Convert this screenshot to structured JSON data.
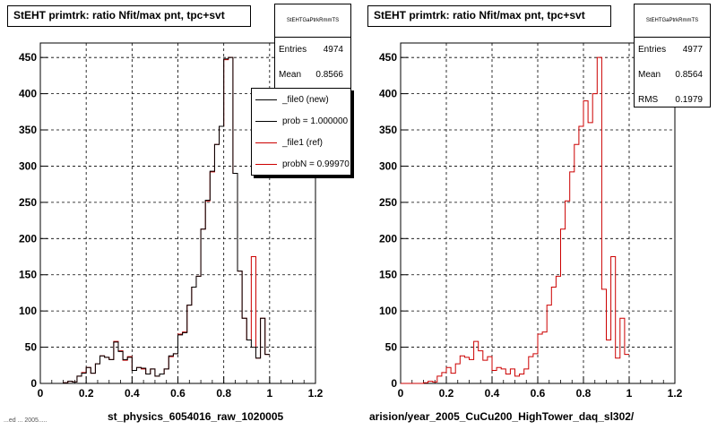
{
  "left": {
    "title": "StEHT primtrk: ratio Nfit/max pnt, tpc+svt",
    "stats": {
      "name": "StEHTGaPtrkRmmTS",
      "entries_label": "Entries",
      "entries": "4974",
      "mean_label": "Mean",
      "mean": "0.8566"
    },
    "legend": [
      {
        "label": "_file0 (new)",
        "color": "#000000"
      },
      {
        "label": "prob = 1.000000",
        "color": "#000000"
      },
      {
        "label": "_file1 (ref)",
        "color": "#cc0000"
      },
      {
        "label": "probN = 0.99970",
        "color": "#cc0000"
      }
    ],
    "footer": "st_physics_6054016_raw_1020005"
  },
  "right": {
    "title": "StEHT primtrk: ratio Nfit/max pnt, tpc+svt",
    "stats": {
      "name": "StEHTGaPtrkRmmTS",
      "entries_label": "Entries",
      "entries": "4977",
      "mean_label": "Mean",
      "mean": "0.8564",
      "rms_label": "RMS",
      "rms": "0.1979"
    },
    "footer": "arision/year_2005_CuCu200_HighTower_daq_sl302/"
  },
  "bottom_note": "...ed ... 2005.....",
  "chart_data": [
    {
      "type": "line",
      "title": "StEHT primtrk: ratio Nfit/max pnt, tpc+svt",
      "xlim": [
        0,
        1.2
      ],
      "ylim": [
        0,
        470
      ],
      "x_ticks": [
        "0",
        "0.2",
        "0.4",
        "0.6",
        "0.8",
        "1",
        "1.2"
      ],
      "y_ticks": [
        "0",
        "50",
        "100",
        "150",
        "200",
        "250",
        "300",
        "350",
        "400",
        "450"
      ],
      "grid": true,
      "bin_width": 0.02,
      "series": [
        {
          "name": "_file0 (new)",
          "color": "#000000",
          "values": [
            0,
            0,
            0,
            0,
            0,
            1,
            3,
            2,
            10,
            14,
            22,
            14,
            27,
            38,
            36,
            33,
            57,
            44,
            33,
            36,
            18,
            22,
            21,
            13,
            20,
            10,
            13,
            20,
            38,
            41,
            67,
            70,
            108,
            133,
            148,
            213,
            253,
            293,
            330,
            355,
            448,
            450,
            290,
            155,
            90,
            60,
            50,
            35,
            90,
            40
          ]
        },
        {
          "name": "_file1 (ref)",
          "color": "#cc0000",
          "values": [
            0,
            0,
            0,
            0,
            0,
            1,
            3,
            2,
            10,
            15,
            22,
            14,
            27,
            38,
            36,
            33,
            58,
            45,
            32,
            37,
            18,
            22,
            20,
            13,
            20,
            10,
            13,
            20,
            37,
            41,
            68,
            71,
            108,
            133,
            148,
            213,
            252,
            292,
            330,
            355,
            447,
            450,
            290,
            155,
            90,
            60,
            175,
            35,
            90,
            40
          ]
        }
      ]
    },
    {
      "type": "line",
      "title": "StEHT primtrk: ratio Nfit/max pnt, tpc+svt",
      "xlim": [
        0,
        1.2
      ],
      "ylim": [
        0,
        470
      ],
      "x_ticks": [
        "0",
        "0.2",
        "0.4",
        "0.6",
        "0.8",
        "1",
        "1.2"
      ],
      "y_ticks": [
        "0",
        "50",
        "100",
        "150",
        "200",
        "250",
        "300",
        "350",
        "400",
        "450"
      ],
      "grid": true,
      "bin_width": 0.02,
      "series": [
        {
          "name": "_file1 (ref)",
          "color": "#cc0000",
          "values": [
            0,
            0,
            0,
            0,
            0,
            1,
            3,
            2,
            10,
            15,
            22,
            14,
            27,
            38,
            36,
            33,
            58,
            45,
            32,
            37,
            18,
            22,
            20,
            13,
            20,
            10,
            13,
            20,
            37,
            41,
            68,
            71,
            108,
            133,
            148,
            213,
            252,
            292,
            330,
            355,
            390,
            360,
            400,
            450,
            130,
            60,
            175,
            35,
            90,
            40
          ]
        }
      ]
    }
  ]
}
